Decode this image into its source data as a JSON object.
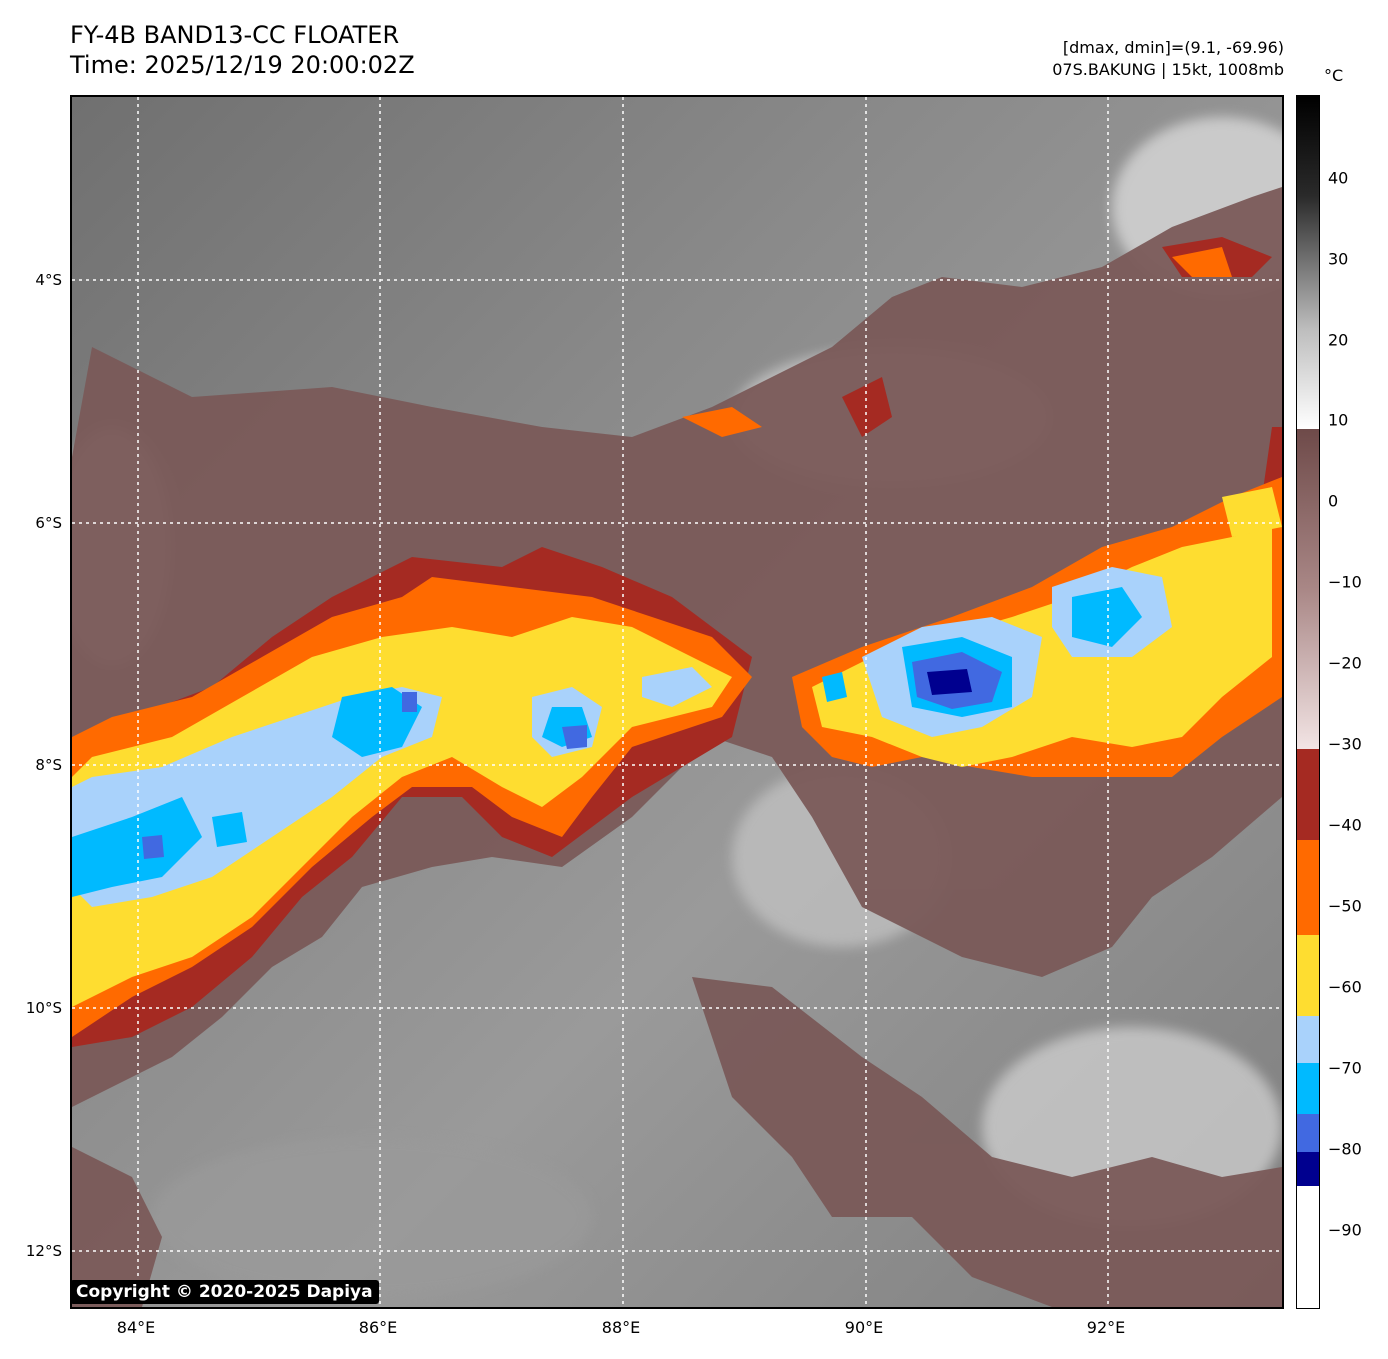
{
  "header": {
    "title_line1": "FY-4B BAND13-CC FLOATER",
    "title_line2": "Time: 2025/12/19 20:00:02Z",
    "info_line1": "[dmax, dmin]=(9.1, -69.96)",
    "info_line2": "07S.BAKUNG | 15kt, 1008mb"
  },
  "colorbar": {
    "unit": "°C",
    "labels": [
      "40",
      "30",
      "20",
      "10",
      "0",
      "−10",
      "−20",
      "−30",
      "−40",
      "−50",
      "−60",
      "−70",
      "−80",
      "−90"
    ]
  },
  "axes": {
    "x_ticks": [
      "84°E",
      "86°E",
      "88°E",
      "90°E",
      "92°E"
    ],
    "y_ticks": [
      "4°S",
      "6°S",
      "8°S",
      "10°S",
      "12°S"
    ]
  },
  "copyright": "Copyright © 2020-2025 Dapiya",
  "colors": {
    "shade_warm": "#7a5a59",
    "shade_red": "#a52a22",
    "shade_orange": "#ff6a00",
    "shade_yellow": "#fedd30",
    "shade_lightblue": "#a9d2fb",
    "shade_cyan": "#00baff",
    "shade_blue": "#4169e1",
    "shade_darkblue": "#00008f"
  }
}
